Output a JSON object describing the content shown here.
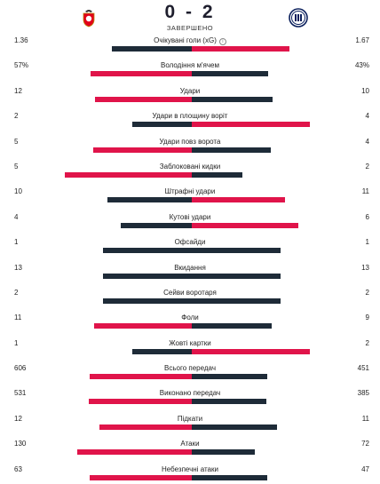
{
  "match": {
    "score": "0 - 2",
    "status": "ЗАВЕРШЕНО",
    "home_logo": "benfica-crest",
    "away_logo": "inter-crest"
  },
  "colors": {
    "leader": "#e0144a",
    "trailer": "#1e2b38"
  },
  "stats": [
    {
      "label": "Очікувані голи (xG)",
      "home": "1.36",
      "away": "1.67",
      "home_v": 1.36,
      "away_v": 1.67,
      "info": "i"
    },
    {
      "label": "Володіння м'ячем",
      "home": "57%",
      "away": "43%",
      "home_v": 57,
      "away_v": 43
    },
    {
      "label": "Удари",
      "home": "12",
      "away": "10",
      "home_v": 12,
      "away_v": 10
    },
    {
      "label": "Удари в площину воріт",
      "home": "2",
      "away": "4",
      "home_v": 2,
      "away_v": 4
    },
    {
      "label": "Удари повз ворота",
      "home": "5",
      "away": "4",
      "home_v": 5,
      "away_v": 4
    },
    {
      "label": "Заблоковані кидки",
      "home": "5",
      "away": "2",
      "home_v": 5,
      "away_v": 2
    },
    {
      "label": "Штрафні удари",
      "home": "10",
      "away": "11",
      "home_v": 10,
      "away_v": 11
    },
    {
      "label": "Кутові удари",
      "home": "4",
      "away": "6",
      "home_v": 4,
      "away_v": 6
    },
    {
      "label": "Офсайди",
      "home": "1",
      "away": "1",
      "home_v": 1,
      "away_v": 1
    },
    {
      "label": "Вкидання",
      "home": "13",
      "away": "13",
      "home_v": 13,
      "away_v": 13
    },
    {
      "label": "Сейви воротаря",
      "home": "2",
      "away": "2",
      "home_v": 2,
      "away_v": 2
    },
    {
      "label": "Фоли",
      "home": "11",
      "away": "9",
      "home_v": 11,
      "away_v": 9
    },
    {
      "label": "Жовті картки",
      "home": "1",
      "away": "2",
      "home_v": 1,
      "away_v": 2
    },
    {
      "label": "Всього передач",
      "home": "606",
      "away": "451",
      "home_v": 606,
      "away_v": 451
    },
    {
      "label": "Виконано передач",
      "home": "531",
      "away": "385",
      "home_v": 531,
      "away_v": 385
    },
    {
      "label": "Підкати",
      "home": "12",
      "away": "11",
      "home_v": 12,
      "away_v": 11
    },
    {
      "label": "Атаки",
      "home": "130",
      "away": "72",
      "home_v": 130,
      "away_v": 72
    },
    {
      "label": "Небезпечні атаки",
      "home": "63",
      "away": "47",
      "home_v": 63,
      "away_v": 47
    }
  ]
}
